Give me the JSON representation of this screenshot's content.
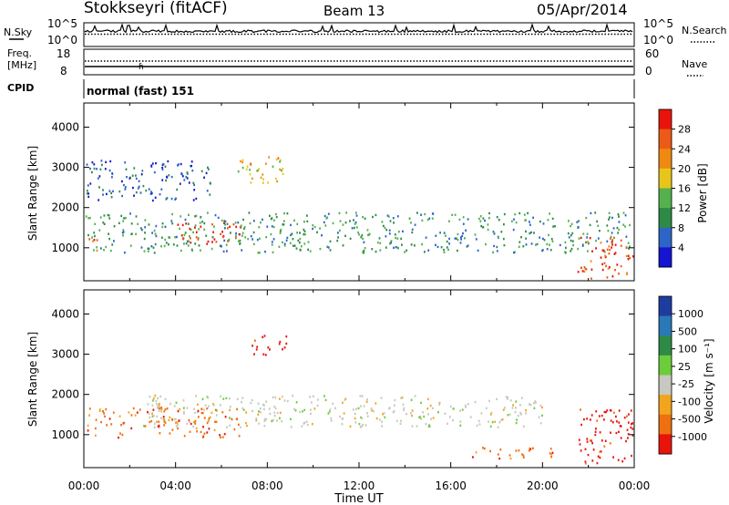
{
  "header": {
    "station": "Stokkseyri (fitACF)",
    "beam": "Beam 13",
    "date": "05/Apr/2014"
  },
  "panels": {
    "nsky": {
      "label": "N.Sky",
      "right_label": "N.Search",
      "left_ticks": [
        "10^5",
        "10^0"
      ],
      "right_ticks": [
        "10^5",
        "10^0"
      ]
    },
    "freq": {
      "label_line1": "Freq.",
      "label_line2": "[MHz]",
      "right_label": "Nave",
      "left_ticks": [
        "18",
        "8"
      ],
      "right_ticks": [
        "60",
        "0"
      ]
    },
    "cpid": {
      "label": "CPID",
      "value": "normal (fast) 151"
    }
  },
  "colors": {
    "power": [
      "#1414d2",
      "#2d64c8",
      "#2f8a46",
      "#54b14e",
      "#e8c51a",
      "#ee8a12",
      "#ec5a18",
      "#e8140c"
    ],
    "velocity": [
      "#1e3ca0",
      "#2a78b8",
      "#2f8a46",
      "#6ccd3a",
      "#c8c8c0",
      "#f2a51c",
      "#ee7010",
      "#e8140c"
    ],
    "ground_scatter": "#c0bfb4"
  },
  "chart_data": [
    {
      "type": "heatmap",
      "name": "power",
      "ylabel": "Slant Range [km]",
      "xlabel": "",
      "x_ticks": [
        "00:00",
        "04:00",
        "08:00",
        "12:00",
        "16:00",
        "20:00",
        "00:00"
      ],
      "x_range_hours": [
        0,
        24
      ],
      "ylim": [
        180,
        4600
      ],
      "y_ticks": [
        1000,
        2000,
        3000,
        4000
      ],
      "colorbar": {
        "label": "Power [dB]",
        "ticks": [
          "28",
          "24",
          "20",
          "16",
          "12",
          "8",
          "4"
        ],
        "range": [
          0,
          30
        ]
      },
      "echo_regions": [
        {
          "t_start": 0.0,
          "t_end": 24.0,
          "range_min": 900,
          "range_max": 1900,
          "dominant_power_db": 10
        },
        {
          "t_start": 4.0,
          "t_end": 6.8,
          "range_min": 1100,
          "range_max": 1650,
          "dominant_power_db": 28
        },
        {
          "t_start": 0.0,
          "t_end": 0.6,
          "range_min": 850,
          "range_max": 1300,
          "dominant_power_db": 26
        },
        {
          "t_start": 21.5,
          "t_end": 24.0,
          "range_min": 250,
          "range_max": 1400,
          "dominant_power_db": 26
        },
        {
          "t_start": 0.0,
          "t_end": 5.5,
          "range_min": 2200,
          "range_max": 3200,
          "dominant_power_db": 6
        },
        {
          "t_start": 6.5,
          "t_end": 8.7,
          "range_min": 2600,
          "range_max": 3300,
          "dominant_power_db": 18
        }
      ]
    },
    {
      "type": "heatmap",
      "name": "velocity",
      "ylabel": "Slant Range [km]",
      "xlabel": "Time UT",
      "x_ticks": [
        "00:00",
        "04:00",
        "08:00",
        "12:00",
        "16:00",
        "20:00",
        "00:00"
      ],
      "x_range_hours": [
        0,
        24
      ],
      "ylim": [
        180,
        4600
      ],
      "y_ticks": [
        1000,
        2000,
        3000,
        4000
      ],
      "colorbar": {
        "label": "Velocity [m s⁻¹]",
        "ticks": [
          "1000",
          "500",
          "100",
          "25",
          "-25",
          "-100",
          "-500",
          "-1000"
        ],
        "range": [
          -1000,
          1000
        ]
      },
      "echo_regions": [
        {
          "t_start": 2.5,
          "t_end": 20.0,
          "range_min": 1200,
          "range_max": 2000,
          "dominant_velocity": 0
        },
        {
          "t_start": 0.0,
          "t_end": 6.8,
          "range_min": 950,
          "range_max": 1700,
          "dominant_velocity": -150
        },
        {
          "t_start": 7.3,
          "t_end": 8.8,
          "range_min": 3000,
          "range_max": 3500,
          "dominant_velocity": -500
        },
        {
          "t_start": 16.8,
          "t_end": 20.5,
          "range_min": 400,
          "range_max": 700,
          "dominant_velocity": -300
        },
        {
          "t_start": 21.5,
          "t_end": 24.0,
          "range_min": 300,
          "range_max": 1700,
          "dominant_velocity": -500
        }
      ]
    }
  ]
}
